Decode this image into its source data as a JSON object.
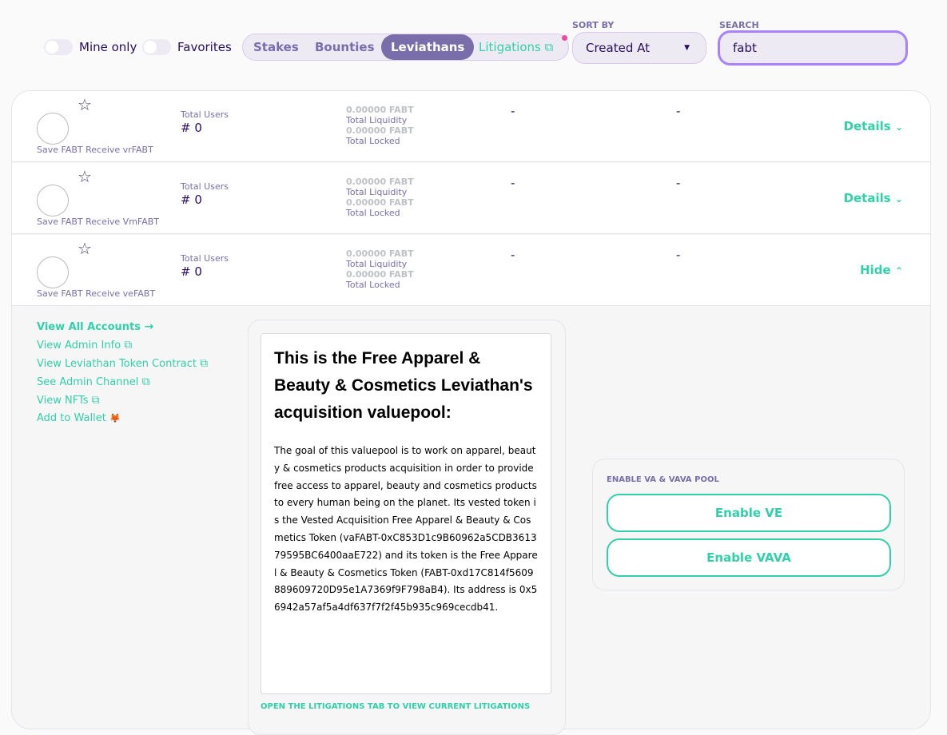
{
  "filters": {
    "mine_only": "Mine only",
    "favorites": "Favorites"
  },
  "tabs": [
    {
      "label": "Stakes"
    },
    {
      "label": "Bounties"
    },
    {
      "label": "Leviathans"
    },
    {
      "label": "Litigations"
    }
  ],
  "sort": {
    "label": "SORT BY",
    "value": "Created At"
  },
  "search": {
    "label": "SEARCH",
    "value": "fabt"
  },
  "rows": [
    {
      "name": "Save FABT Receive vrFABT",
      "users_label": "Total Users",
      "users": "# 0",
      "liquidity": "0.00000 FABT",
      "liquidity_label": "Total Liquidity",
      "locked": "0.00000 FABT",
      "locked_label": "Total Locked",
      "col3": "-",
      "col4": "-",
      "action": "Details"
    },
    {
      "name": "Save FABT Receive VmFABT",
      "users_label": "Total Users",
      "users": "# 0",
      "liquidity": "0.00000 FABT",
      "liquidity_label": "Total Liquidity",
      "locked": "0.00000 FABT",
      "locked_label": "Total Locked",
      "col3": "-",
      "col4": "-",
      "action": "Details"
    },
    {
      "name": "Save FABT Receive veFABT",
      "users_label": "Total Users",
      "users": "# 0",
      "liquidity": "0.00000 FABT",
      "liquidity_label": "Total Liquidity",
      "locked": "0.00000 FABT",
      "locked_label": "Total Locked",
      "col3": "-",
      "col4": "-",
      "action": "Hide"
    }
  ],
  "links": [
    "View All Accounts",
    "View Admin Info",
    "View Leviathan Token Contract",
    "See Admin Channel",
    "View NFTs",
    "Add to Wallet"
  ],
  "description": {
    "title": "This is the Free Apparel & Beauty & Cosmetics Leviathan's acquisition valuepool:",
    "body": "The goal of this valuepool is to work on apparel, beauty & cosmetics products acquisition in order to provide free access to apparel, beauty and cosmetics products to every human being on the planet. Its vested token is the Vested Acquisition Free Apparel & Beauty & Cosmetics Token (vaFABT-0xC853D1c9B60962a5CDB361379595BC6400aaE722) and its token is the Free Apparel & Beauty & Cosmetics Token (FABT-0xd17C814f5609889609720D95e1A7369f9F798aB4). Its address is 0x56942a57af5a4df637f7f2f45b935c969cecdb41.",
    "footer": "OPEN THE LITIGATIONS TAB TO VIEW CURRENT LITIGATIONS"
  },
  "pool": {
    "label": "ENABLE VA & VAVA POOL",
    "enable_ve": "Enable VE",
    "enable_vava": "Enable VAVA"
  },
  "colors": {
    "accent": "#31d0aa",
    "primary": "#7a6eaa",
    "text": "#280d5f",
    "focus": "#a881fc"
  }
}
